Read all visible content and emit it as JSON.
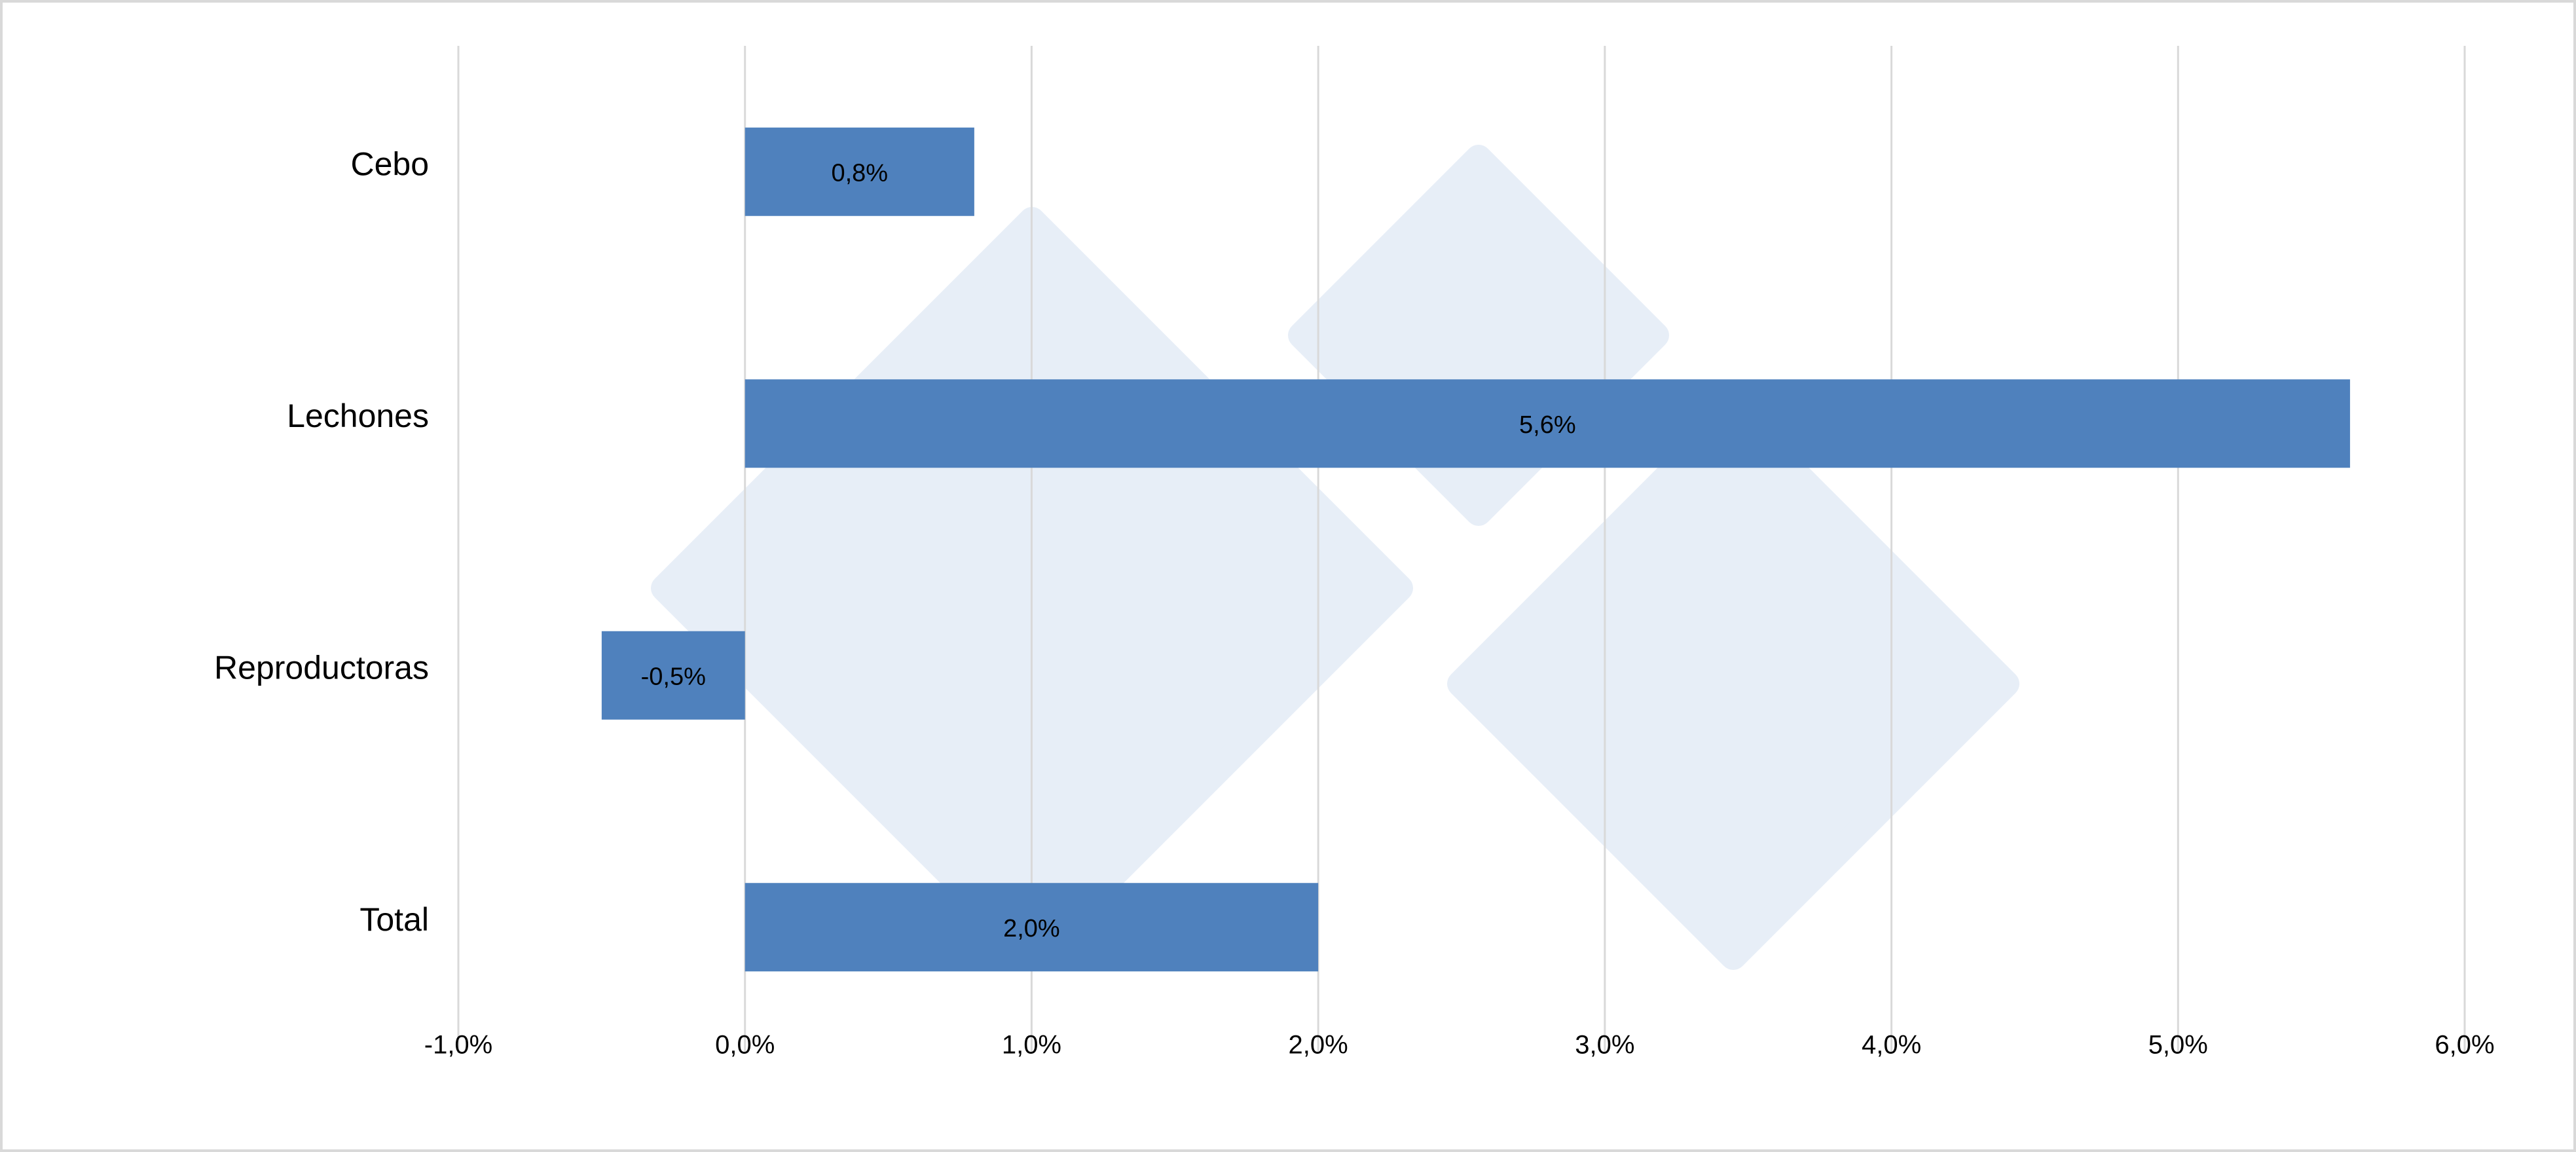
{
  "chart_data": {
    "type": "barh",
    "categories": [
      "Cebo",
      "Lechones",
      "Reproductoras",
      "Total"
    ],
    "values": [
      0.8,
      5.6,
      -0.5,
      2.0
    ],
    "value_labels": [
      "0,8%",
      "5,6%",
      "-0,5%",
      "2,0%"
    ],
    "color": "#4f81bd",
    "xlim": [
      -1,
      6
    ],
    "xticks": [
      {
        "value": -1,
        "label": "-1,0%"
      },
      {
        "value": 0,
        "label": "0,0%"
      },
      {
        "value": 1,
        "label": "1,0%"
      },
      {
        "value": 2,
        "label": "2,0%"
      },
      {
        "value": 3,
        "label": "3,0%"
      },
      {
        "value": 4,
        "label": "4,0%"
      },
      {
        "value": 5,
        "label": "5,0%"
      },
      {
        "value": 6,
        "label": "6,0%"
      }
    ],
    "grid": true
  }
}
